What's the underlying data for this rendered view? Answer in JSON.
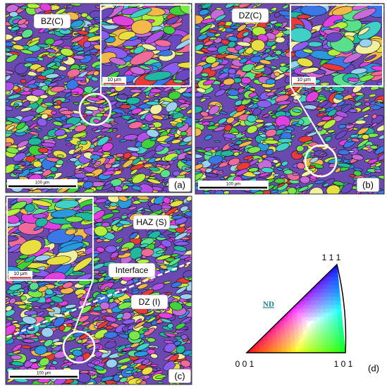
{
  "panels": [
    {
      "label": "(a)",
      "zones": [
        "BZ(C)"
      ],
      "inset_scale": "10 μm",
      "scale": "100 μm"
    },
    {
      "label": "(b)",
      "zones": [
        "DZ(C)"
      ],
      "inset_scale": "10 μm",
      "scale": "100 μm"
    },
    {
      "label": "(c)",
      "zones": [
        "HAZ (S)",
        "Interface",
        "DZ (I)"
      ],
      "inset_scale": "10 μm",
      "scale": "100 μm"
    }
  ],
  "legend": {
    "axis": "ND",
    "corners": [
      "0 0 1",
      "1 0 1",
      "1 1 1"
    ],
    "label": "(d)"
  }
}
